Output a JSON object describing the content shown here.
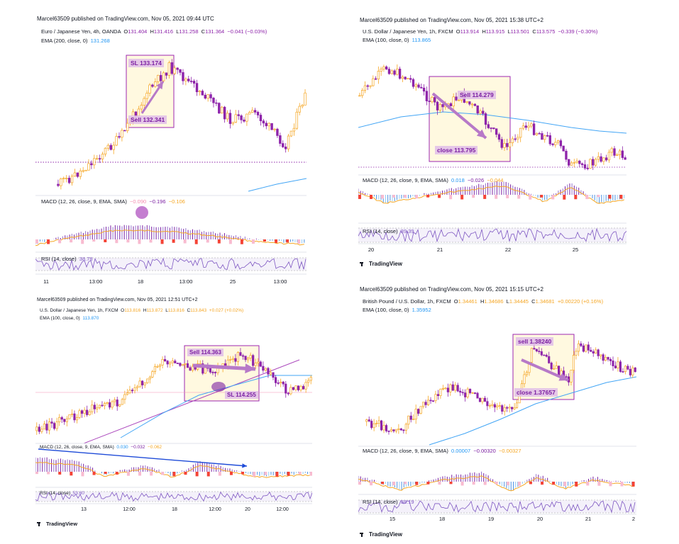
{
  "panels": [
    {
      "id": "eurjpy",
      "published": "Marcel63509 published on TradingView.com, Nov 05, 2021 09:44 UTC",
      "symbol": "Euro / Japanese Yen, 4h, OANDA",
      "ohlc": {
        "o": "131.404",
        "h": "131.416",
        "l": "131.258",
        "c": "131.364",
        "chg": "−0.041 (−0.03%)"
      },
      "ema_label": "EMA (200, close, 0)",
      "ema_value": "131.268",
      "macd_label": "MACD (12, 26, close, 9, EMA, SMA)",
      "macd_values": [
        "−0.090",
        "−0.196",
        "−0.106"
      ],
      "rsi_label": "RSI (14, close)",
      "rsi_value": "38.78",
      "x_ticks": [
        "11",
        "13:00",
        "18",
        "13:00",
        "25",
        "13:00"
      ],
      "annotations": {
        "top": "SL 133.174",
        "bottom": "Sell 132.341"
      },
      "branding": ""
    },
    {
      "id": "usdjpy1",
      "published": "Marcel63509 published on TradingView.com, Nov 05, 2021 15:38 UTC+2",
      "symbol": "U.S. Dollar / Japanese Yen, 1h, FXCM",
      "ohlc": {
        "o": "113.914",
        "h": "113.915",
        "l": "113.501",
        "c": "113.575",
        "chg": "−0.339 (−0.30%)"
      },
      "ema_label": "EMA (100, close, 0)",
      "ema_value": "113.865",
      "macd_label": "MACD (12, 26, close, 9, EMA, SMA)",
      "macd_values": [
        "0.018",
        "−0.026",
        "−0.044"
      ],
      "rsi_label": "RSI (14, close)",
      "rsi_value": "39.39",
      "x_ticks": [
        "20",
        "21",
        "22",
        "25"
      ],
      "annotations": {
        "top": "Sell 114.279",
        "bottom": "close 113.795"
      },
      "branding": "TradingView"
    },
    {
      "id": "usdjpy2",
      "published": "Marcel63509 published on TradingView.com, Nov 05, 2021 12:51 UTC+2",
      "symbol": "U.S. Dollar / Japanese Yen, 1h, FXCM",
      "ohlc": {
        "o": "113.816",
        "h": "113.872",
        "l": "113.816",
        "c": "113.843",
        "chg": "+0.027 (+0.02%)"
      },
      "ema_label": "EMA (100, close, 0)",
      "ema_value": "113.870",
      "macd_label": "MACD (12, 26, close, 9, EMA, SMA)",
      "macd_values": [
        "0.030",
        "−0.032",
        "−0.062"
      ],
      "rsi_label": "RSI (14, close)",
      "rsi_value": "53.60",
      "x_ticks": [
        "13",
        "12:00",
        "18",
        "12:00",
        "20",
        "12:00"
      ],
      "annotations": {
        "top": "Sell 114.363",
        "bottom": "SL 114.255"
      },
      "branding": "TradingView"
    },
    {
      "id": "gbpusd",
      "published": "Marcel63509 published on TradingView.com, Nov 05, 2021 15:15 UTC+2",
      "symbol": "British Pound / U.S. Dollar, 1h, FXCM",
      "ohlc": {
        "o": "1.34461",
        "h": "1.34686",
        "l": "1.34445",
        "c": "1.34681",
        "chg": "+0.00220 (+0.16%)"
      },
      "ema_label": "EMA (100, close, 0)",
      "ema_value": "1.35952",
      "macd_label": "MACD (12, 26, close, 9, EMA, SMA)",
      "macd_values": [
        "0.00007",
        "−0.00320",
        "−0.00327"
      ],
      "rsi_label": "RSI (14, close)",
      "rsi_value": "38.19",
      "x_ticks": [
        "15",
        "18",
        "19",
        "20",
        "21",
        "2"
      ],
      "annotations": {
        "top": "sell 1.38240",
        "bottom": "close 1.37657"
      },
      "branding": "TradingView"
    }
  ],
  "colors": {
    "up": "#f5a623",
    "down": "#8e24aa",
    "ema": "#42a5f5",
    "macd_pos": "#4a90e2",
    "macd_neg": "#f44336",
    "signal": "#f5a623",
    "rsi": "#7e57c2",
    "box_fill": "#fff9e0",
    "box_stroke": "#9c27b0",
    "arrow": "#b779c8",
    "trend_arrow": "#1e4bd8"
  },
  "chart_data": [
    {
      "type": "candlestick",
      "title": "Euro / Japanese Yen, 4h, OANDA",
      "x_ticks": [
        "11",
        "13:00",
        "18",
        "13:00",
        "25",
        "13:00"
      ],
      "series": [
        {
          "name": "EMA (200, close, 0)",
          "last": 131.268
        }
      ],
      "indicators": {
        "macd": [
          -0.09,
          -0.196,
          -0.106
        ],
        "rsi": 38.78
      },
      "annotations": [
        "SL 133.174",
        "Sell 132.341"
      ]
    },
    {
      "type": "candlestick",
      "title": "U.S. Dollar / Japanese Yen, 1h, FXCM",
      "x_ticks": [
        "20",
        "21",
        "22",
        "25"
      ],
      "series": [
        {
          "name": "EMA (100, close, 0)",
          "last": 113.865
        }
      ],
      "indicators": {
        "macd": [
          0.018,
          -0.026,
          -0.044
        ],
        "rsi": 39.39
      },
      "annotations": [
        "Sell 114.279",
        "close 113.795"
      ]
    },
    {
      "type": "candlestick",
      "title": "U.S. Dollar / Japanese Yen, 1h, FXCM",
      "x_ticks": [
        "13",
        "12:00",
        "18",
        "12:00",
        "20",
        "12:00"
      ],
      "series": [
        {
          "name": "EMA (100, close, 0)",
          "last": 113.87
        }
      ],
      "indicators": {
        "macd": [
          0.03,
          -0.032,
          -0.062
        ],
        "rsi": 53.6
      },
      "annotations": [
        "Sell 114.363",
        "SL 114.255"
      ]
    },
    {
      "type": "candlestick",
      "title": "British Pound / U.S. Dollar, 1h, FXCM",
      "x_ticks": [
        "15",
        "18",
        "19",
        "20",
        "21",
        "2"
      ],
      "series": [
        {
          "name": "EMA (100, close, 0)",
          "last": 1.35952
        }
      ],
      "indicators": {
        "macd": [
          7e-05,
          -0.0032,
          -0.00327
        ],
        "rsi": 38.19
      },
      "annotations": [
        "sell 1.38240",
        "close 1.37657"
      ]
    }
  ]
}
